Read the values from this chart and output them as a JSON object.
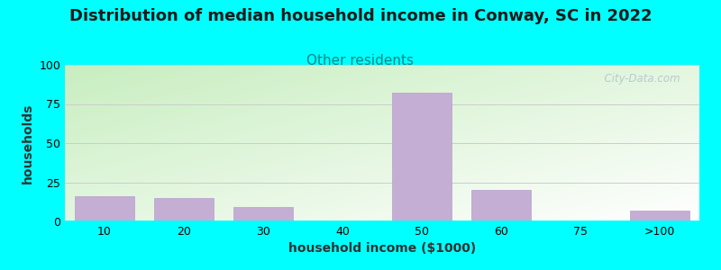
{
  "title": "Distribution of median household income in Conway, SC in 2022",
  "subtitle": "Other residents",
  "xlabel": "household income ($1000)",
  "ylabel": "households",
  "background_outer": "#00FFFF",
  "grad_color_topleft": "#c8eec0",
  "grad_color_bottomright": "#ffffff",
  "bar_color": "#c4aed4",
  "bar_edgecolor": "#b8a0cc",
  "categories": [
    "10",
    "20",
    "30",
    "40",
    "50",
    "60",
    "75",
    ">100"
  ],
  "values": [
    16,
    15,
    9,
    0,
    82,
    20,
    0,
    7
  ],
  "ylim": [
    0,
    100
  ],
  "yticks": [
    0,
    25,
    50,
    75,
    100
  ],
  "watermark": "  City-Data.com",
  "title_fontsize": 13,
  "subtitle_fontsize": 11,
  "subtitle_color": "#008888",
  "axis_label_fontsize": 10,
  "tick_fontsize": 9
}
